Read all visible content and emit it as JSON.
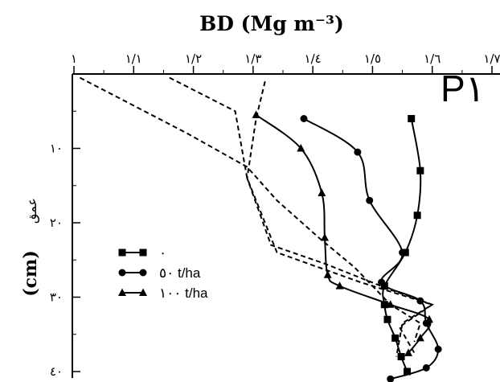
{
  "chart_data": {
    "type": "line",
    "title": "BD (Mg m⁻³)",
    "xlabel": "BD (Mg m⁻³)",
    "ylabel": "(cm)",
    "ylabel_fa": "عمق",
    "panel_label": "P١",
    "x_axis_position": "top",
    "y_inverted": true,
    "xlim": [
      1.0,
      1.7
    ],
    "ylim": [
      0,
      40
    ],
    "x_ticks": [
      1.0,
      1.1,
      1.2,
      1.3,
      1.4,
      1.5,
      1.6,
      1.7
    ],
    "x_tick_labels": [
      "١",
      "١/١",
      "١/٢",
      "١/٣",
      "١/٤",
      "١/٥",
      "١/٦",
      "١/٧"
    ],
    "y_ticks": [
      10,
      20,
      30,
      40
    ],
    "y_tick_labels": [
      "١٠",
      "٢٠",
      "٣٠",
      "٤٠"
    ],
    "legend_position": "bottom-left",
    "series": [
      {
        "name": "٠",
        "marker": "square",
        "x": [
          1.565,
          1.58,
          1.575,
          1.555,
          1.52,
          1.52,
          1.525,
          1.538,
          1.548,
          1.558
        ],
        "y": [
          6,
          13,
          19,
          24,
          28.5,
          31,
          33,
          35.5,
          38,
          40
        ]
      },
      {
        "name": "٥٠ t/ha",
        "marker": "circle",
        "x": [
          1.385,
          1.475,
          1.495,
          1.55,
          1.515,
          1.58,
          1.59,
          1.61,
          1.59,
          1.53
        ],
        "y": [
          6,
          10.5,
          17,
          24,
          28,
          30.5,
          33.5,
          37,
          39.5,
          41
        ]
      },
      {
        "name": "١٠٠ t/ha",
        "marker": "triangle",
        "x": [
          1.305,
          1.38,
          1.415,
          1.42,
          1.425,
          1.445,
          1.53,
          1.595,
          1.58,
          1.56
        ],
        "y": [
          5.5,
          10,
          16,
          22,
          27,
          28.5,
          31,
          33,
          35.5,
          37.5
        ]
      },
      {
        "name": "",
        "marker": "none",
        "style": "dashed",
        "x": [
          1.32,
          1.305,
          1.29,
          1.33,
          1.42,
          1.53,
          1.6,
          1.55,
          1.54
        ],
        "y": [
          1,
          6,
          14,
          23,
          25.5,
          29,
          31,
          33.5,
          38
        ]
      },
      {
        "name": "",
        "marker": "none",
        "style": "dashed",
        "x": [
          1.16,
          1.27,
          1.29,
          1.34,
          1.48,
          1.6,
          1.545,
          1.57
        ],
        "y": [
          0.5,
          5,
          14,
          24,
          28,
          31,
          34,
          37.5
        ]
      },
      {
        "name": "",
        "marker": "none",
        "style": "dashed",
        "x": [
          1.01,
          1.07,
          1.19,
          1.29,
          1.34,
          1.41,
          1.47,
          1.53,
          1.58,
          1.57
        ],
        "y": [
          0.5,
          3,
          8,
          12.5,
          17,
          22,
          26,
          31,
          33.5,
          36
        ]
      }
    ]
  }
}
